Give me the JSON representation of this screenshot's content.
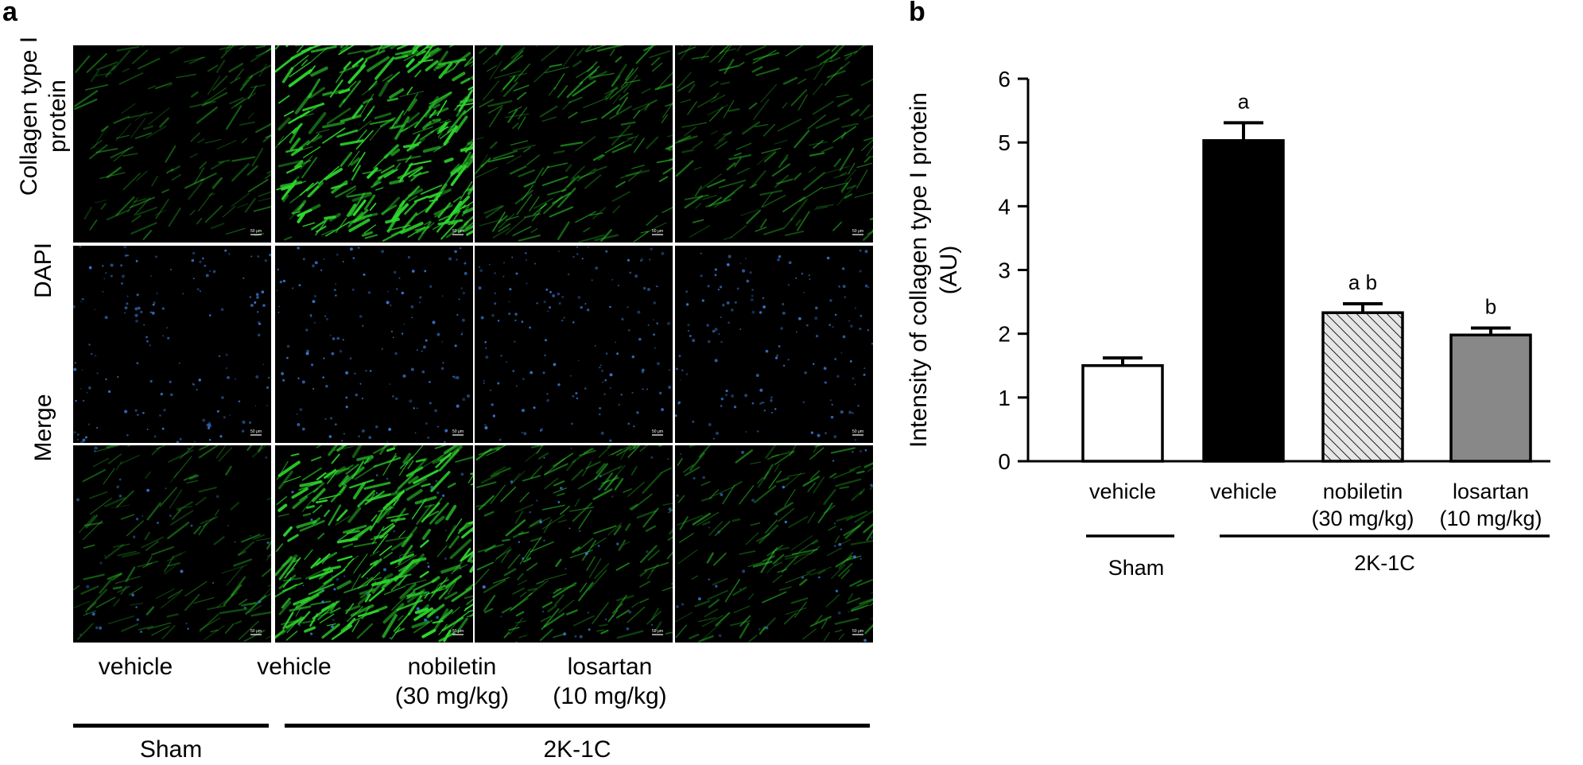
{
  "panel_a": {
    "letter": "a",
    "row_labels": [
      "Collagen type I\nprotein",
      "DAPI",
      "Merge"
    ],
    "column_labels": [
      "vehicle",
      "vehicle",
      "nobiletin\n(30 mg/kg)",
      "losartan\n(10 mg/kg)"
    ],
    "groups": [
      "Sham",
      "2K-1C"
    ],
    "scale_bar_label": "50 μm",
    "collagen_intensity": [
      1.5,
      5.0,
      2.35,
      2.0
    ],
    "colors": {
      "collagen": "#2ed82e",
      "dapi": "#3a7bd5",
      "background": "#000000"
    }
  },
  "panel_b": {
    "letter": "b"
  },
  "chart_data": {
    "type": "bar",
    "categories": [
      "vehicle",
      "vehicle",
      "nobiletin\n(30 mg/kg)",
      "losartan\n(10 mg/kg)"
    ],
    "values": [
      1.5,
      5.03,
      2.33,
      1.98
    ],
    "errors": [
      0.12,
      0.28,
      0.14,
      0.11
    ],
    "significance": [
      "",
      "a",
      "a b",
      "b"
    ],
    "bar_fills": [
      "white",
      "black",
      "hatched",
      "gray"
    ],
    "bar_colors": [
      "#ffffff",
      "#000000",
      "#dddddd",
      "#888888"
    ],
    "ylabel": "Intensity of collagen type I protein\n(AU)",
    "xlabel": "",
    "ylim": [
      0,
      6
    ],
    "yticks": [
      0,
      1,
      2,
      3,
      4,
      5,
      6
    ],
    "groups": [
      {
        "label": "Sham",
        "categories": [
          0
        ]
      },
      {
        "label": "2K-1C",
        "categories": [
          1,
          2,
          3
        ]
      }
    ],
    "grid": false,
    "legend": "none"
  }
}
